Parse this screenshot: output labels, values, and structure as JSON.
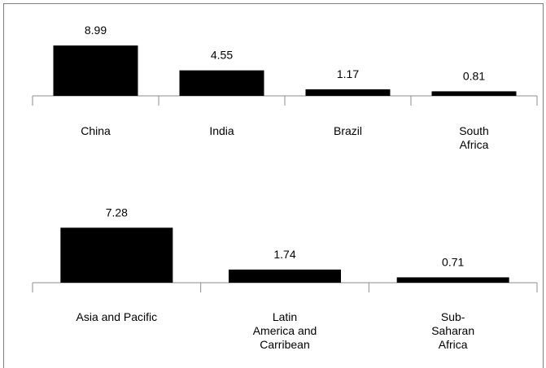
{
  "chart_data": [
    {
      "type": "bar",
      "categories": [
        "China",
        "India",
        "Brazil",
        "South Africa"
      ],
      "category_lines": [
        [
          "China"
        ],
        [
          "India"
        ],
        [
          "Brazil"
        ],
        [
          "South",
          "Africa"
        ]
      ],
      "values": [
        8.99,
        4.55,
        1.17,
        0.81
      ],
      "value_labels": [
        "8.99",
        "4.55",
        "1.17",
        "0.81"
      ],
      "bar_color": "#000000",
      "grid": false,
      "legend": "none"
    },
    {
      "type": "bar",
      "categories": [
        "Asia and Pacific",
        "Latin America and Carribean",
        "Sub-Saharan Africa"
      ],
      "category_lines": [
        [
          "Asia and Pacific"
        ],
        [
          "Latin",
          "America and",
          "Carribean"
        ],
        [
          "Sub-",
          "Saharan",
          "Africa"
        ]
      ],
      "values": [
        7.28,
        1.74,
        0.71
      ],
      "value_labels": [
        "7.28",
        "1.74",
        "0.71"
      ],
      "bar_color": "#000000",
      "grid": false,
      "legend": "none"
    }
  ]
}
